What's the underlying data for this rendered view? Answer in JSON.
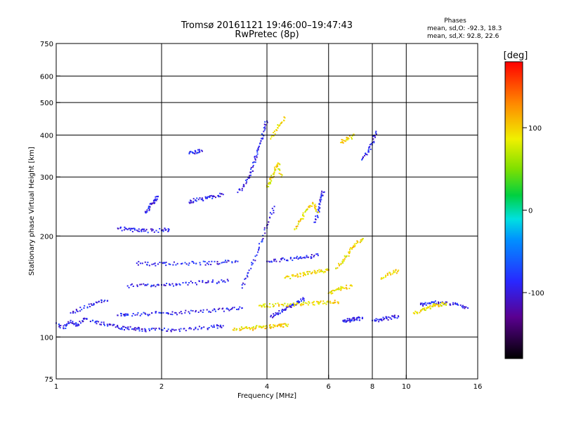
{
  "chart_data": {
    "type": "scatter",
    "title": "Tromsø 20161121 19:46:00–19:47:43",
    "subtitle": "RwPretec (8p)",
    "xlabel": "Frequency [MHz]",
    "ylabel": "Stationary phase Virtual Height [km]",
    "x_scale": "log",
    "y_scale": "log",
    "xlim": [
      1,
      16
    ],
    "ylim": [
      75,
      750
    ],
    "x_ticks": [
      1,
      2,
      4,
      6,
      8,
      10,
      16
    ],
    "y_ticks": [
      75,
      100,
      200,
      300,
      400,
      500,
      600,
      750
    ],
    "x_grid": [
      2,
      4,
      6,
      8,
      10
    ],
    "y_grid": [
      100,
      200,
      300,
      400,
      500,
      600
    ],
    "grid": true,
    "stats": {
      "heading": "Phases",
      "line_o": "mean, sd,O: -92.3, 18.3",
      "line_x": "mean, sd,X:  92.8, 22.6"
    },
    "colorbar": {
      "label": "[deg]",
      "range": [
        -180,
        180
      ],
      "ticks": [
        100,
        0,
        -100
      ]
    },
    "series": [
      {
        "mode": "O",
        "phase_deg": -92,
        "traces": [
          {
            "f": [
              1.0,
              1.05,
              1.1,
              1.15,
              1.2,
              1.3,
              1.4,
              1.5,
              1.6,
              1.7,
              1.8,
              2.0,
              2.2,
              2.5,
              2.8,
              3.0
            ],
            "h": [
              110,
              106,
              112,
              108,
              113,
              111,
              109,
              107,
              106,
              106,
              105,
              105,
              105,
              106,
              107,
              108
            ]
          },
          {
            "f": [
              1.1,
              1.2,
              1.3,
              1.4
            ],
            "h": [
              118,
              122,
              127,
              128
            ]
          },
          {
            "f": [
              1.5,
              1.6,
              1.8,
              2.0,
              2.2,
              2.5,
              2.8,
              3.1,
              3.4
            ],
            "h": [
              116,
              117,
              117,
              118,
              118,
              119,
              120,
              121,
              122
            ]
          },
          {
            "f": [
              1.6,
              1.8,
              2.0,
              2.2,
              2.5,
              2.8,
              3.1
            ],
            "h": [
              142,
              143,
              143,
              144,
              145,
              146,
              147
            ]
          },
          {
            "f": [
              1.7,
              1.9,
              2.1,
              2.4,
              2.7,
              3.0,
              3.3
            ],
            "h": [
              166,
              165,
              165,
              166,
              166,
              167,
              168
            ]
          },
          {
            "f": [
              1.5,
              1.6,
              1.7,
              1.8,
              2.0,
              2.1
            ],
            "h": [
              211,
              209,
              208,
              207,
              208,
              209
            ]
          },
          {
            "f": [
              1.8,
              1.85,
              1.9,
              1.95
            ],
            "h": [
              235,
              245,
              255,
              262
            ]
          },
          {
            "f": [
              2.4,
              2.5,
              2.7,
              2.8,
              3.0
            ],
            "h": [
              252,
              256,
              259,
              262,
              266
            ]
          },
          {
            "f": [
              2.4,
              2.5,
              2.6
            ],
            "h": [
              352,
              356,
              360
            ]
          },
          {
            "f": [
              3.3,
              3.5,
              3.6,
              3.7,
              3.8,
              3.9,
              4.0
            ],
            "h": [
              270,
              290,
              310,
              340,
              370,
              400,
              440
            ]
          },
          {
            "f": [
              3.4,
              3.6,
              3.8,
              4.0,
              4.2
            ],
            "h": [
              140,
              160,
              185,
              215,
              245
            ]
          },
          {
            "f": [
              4.1,
              4.3,
              4.5,
              4.7,
              4.9,
              5.1
            ],
            "h": [
              115,
              118,
              121,
              124,
              127,
              130
            ]
          },
          {
            "f": [
              4.0,
              4.4,
              4.8,
              5.2,
              5.6
            ],
            "h": [
              168,
              170,
              172,
              173,
              175
            ]
          },
          {
            "f": [
              5.5,
              5.6,
              5.7,
              5.8
            ],
            "h": [
              220,
              240,
              260,
              270
            ]
          },
          {
            "f": [
              6.6,
              6.8,
              7.0,
              7.2,
              7.5
            ],
            "h": [
              112,
              112,
              113,
              113,
              114
            ]
          },
          {
            "f": [
              7.5,
              7.8,
              8.0,
              8.2
            ],
            "h": [
              340,
              360,
              380,
              410
            ]
          },
          {
            "f": [
              8.0,
              8.5,
              9.0,
              9.5
            ],
            "h": [
              112,
              113,
              114,
              115
            ]
          },
          {
            "f": [
              11.0,
              11.5,
              12.0,
              13.0,
              14.0,
              15.0
            ],
            "h": [
              125,
              126,
              127,
              126,
              125,
              122
            ]
          }
        ]
      },
      {
        "mode": "X",
        "phase_deg": 93,
        "traces": [
          {
            "f": [
              3.2,
              3.4,
              3.6,
              3.8,
              4.0,
              4.2,
              4.4,
              4.6
            ],
            "h": [
              105,
              106,
              106,
              107,
              107,
              108,
              108,
              109
            ]
          },
          {
            "f": [
              3.8,
              4.0,
              4.4,
              4.8,
              5.2,
              5.6,
              6.0,
              6.4
            ],
            "h": [
              124,
              124,
              125,
              125,
              126,
              126,
              127,
              127
            ]
          },
          {
            "f": [
              4.5,
              4.8,
              5.1,
              5.4,
              5.7,
              6.0
            ],
            "h": [
              150,
              152,
              154,
              156,
              157,
              158
            ]
          },
          {
            "f": [
              4.8,
              5.0,
              5.2,
              5.4,
              5.6
            ],
            "h": [
              210,
              225,
              240,
              250,
              235
            ]
          },
          {
            "f": [
              4.0,
              4.1,
              4.2,
              4.3,
              4.4
            ],
            "h": [
              280,
              295,
              310,
              330,
              300
            ]
          },
          {
            "f": [
              4.1,
              4.3,
              4.5
            ],
            "h": [
              390,
              420,
              450
            ]
          },
          {
            "f": [
              6.3,
              6.6,
              6.9,
              7.2,
              7.5
            ],
            "h": [
              160,
              170,
              180,
              190,
              195
            ]
          },
          {
            "f": [
              6.0,
              6.3,
              6.6,
              7.0
            ],
            "h": [
              135,
              138,
              140,
              142
            ]
          },
          {
            "f": [
              6.5,
              6.8,
              7.1
            ],
            "h": [
              380,
              390,
              400
            ]
          },
          {
            "f": [
              10.5,
              11.0,
              11.5,
              12.0,
              12.5,
              13.0
            ],
            "h": [
              118,
              120,
              122,
              124,
              125,
              126
            ]
          },
          {
            "f": [
              8.5,
              9.0,
              9.5
            ],
            "h": [
              150,
              155,
              158
            ]
          }
        ]
      }
    ]
  }
}
